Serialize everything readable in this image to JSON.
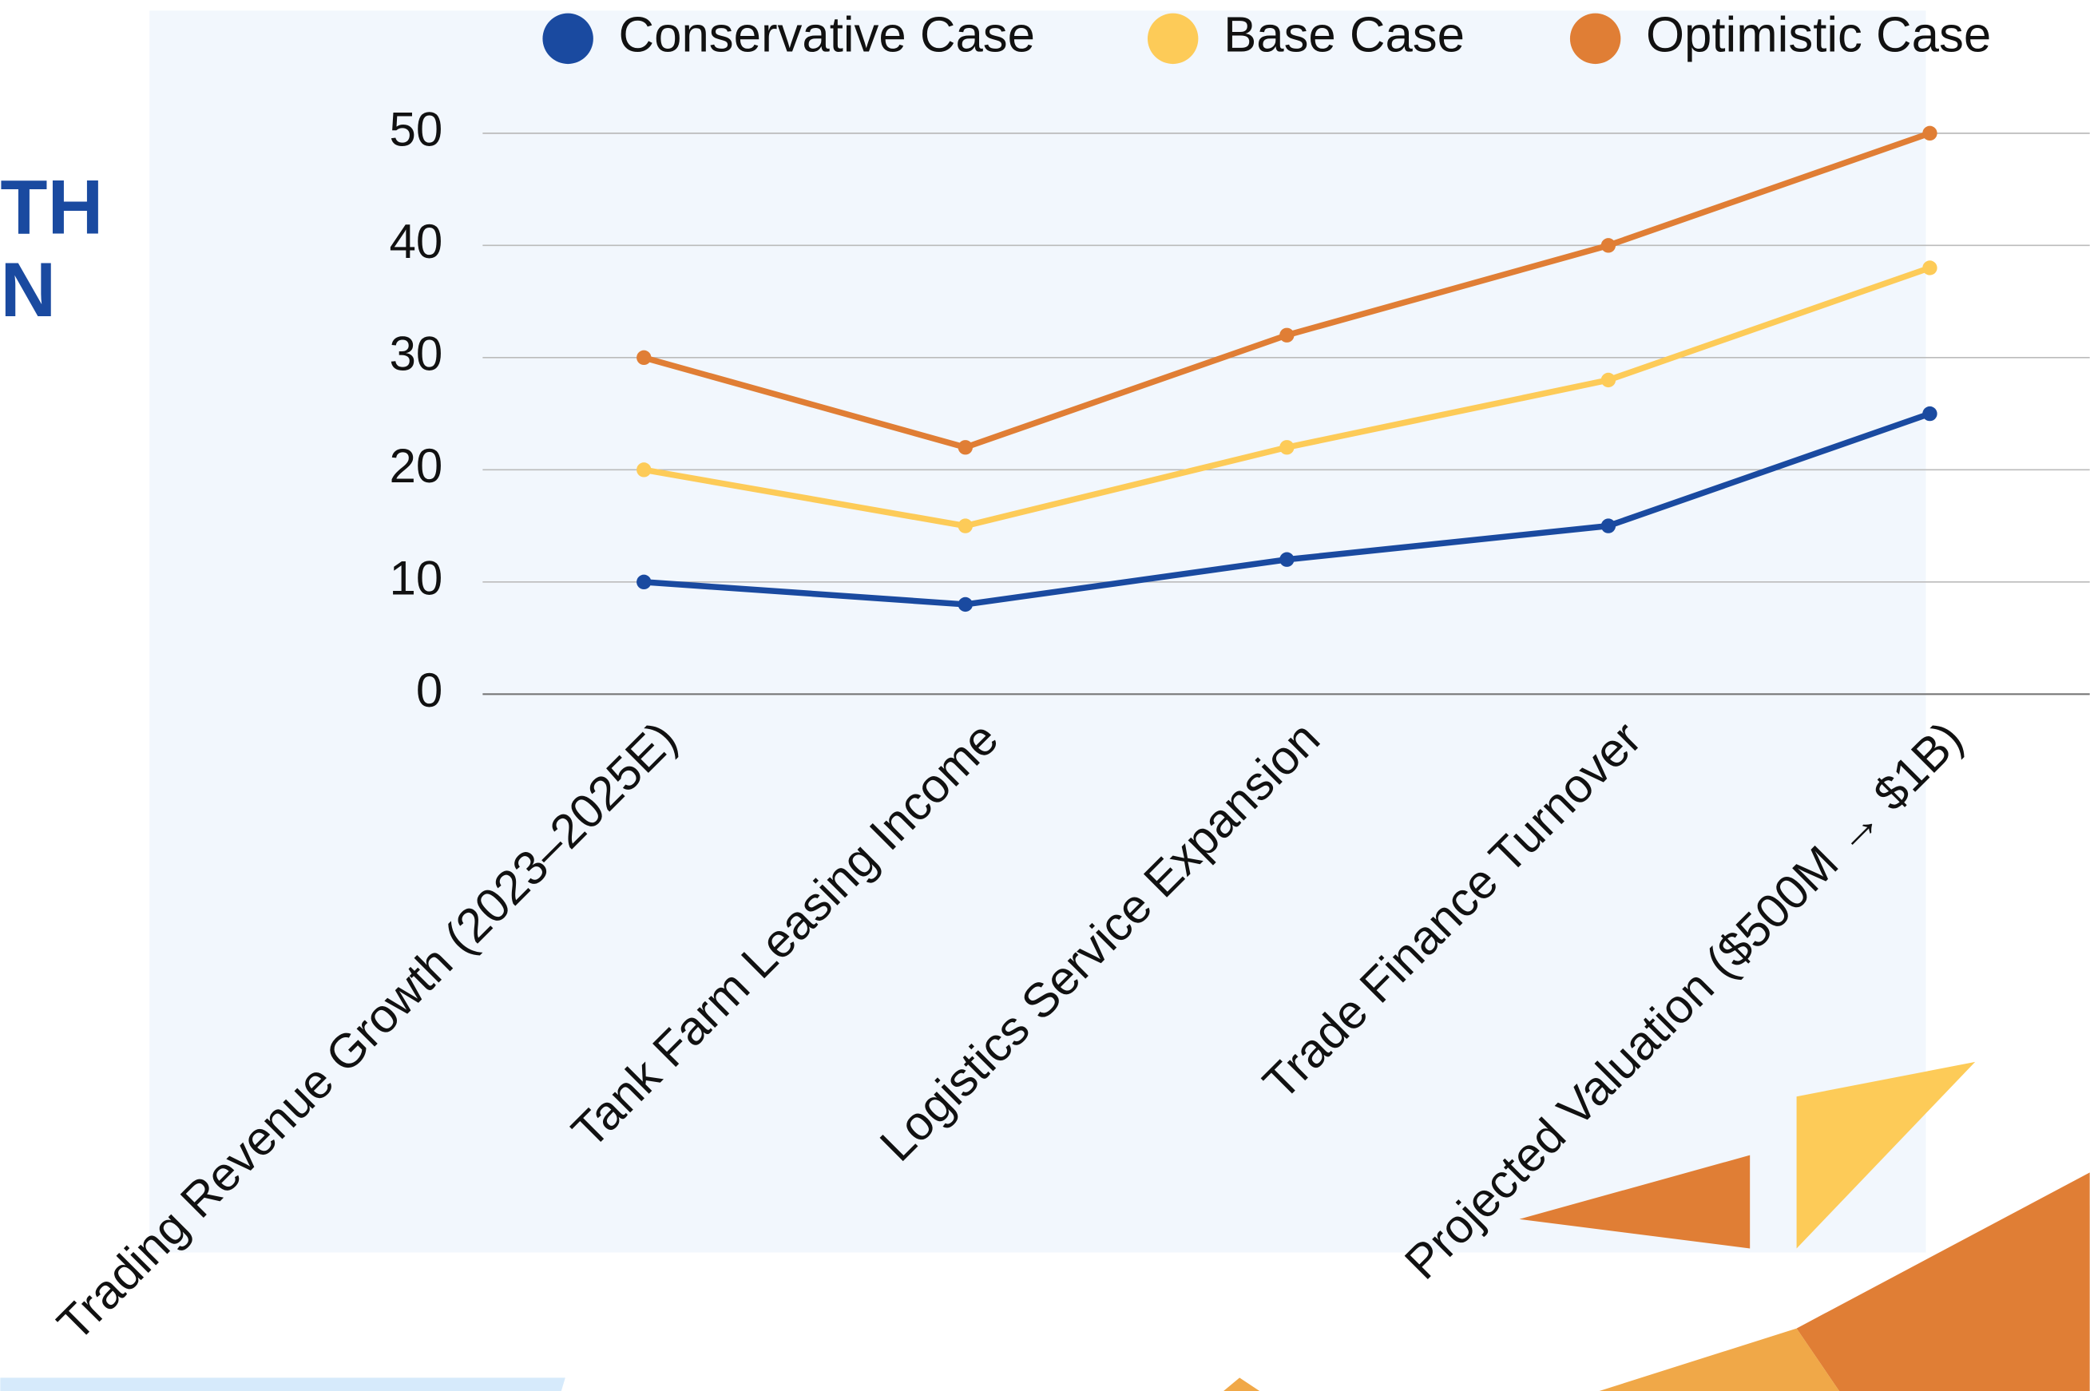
{
  "page": {
    "title_fragments": [
      "TH",
      "N"
    ]
  },
  "chart_data": {
    "type": "line",
    "categories": [
      "Trading Revenue Growth (2023–2025E)",
      "Tank Farm Leasing Income",
      "Logistics Service Expansion",
      "Trade Finance Turnover",
      "Projected Valuation ($500M → $1B)"
    ],
    "series": [
      {
        "name": "Conservative Case",
        "color": "#1a4aa0",
        "values": [
          10,
          8,
          12,
          15,
          25
        ]
      },
      {
        "name": "Base Case",
        "color": "#fdcb58",
        "values": [
          20,
          15,
          22,
          28,
          38
        ]
      },
      {
        "name": "Optimistic Case",
        "color": "#e07e35",
        "values": [
          30,
          22,
          32,
          40,
          50
        ]
      }
    ],
    "ylim": [
      0,
      50
    ],
    "yticks": [
      0,
      10,
      20,
      30,
      40,
      50
    ],
    "grid": true,
    "legend": "top"
  }
}
